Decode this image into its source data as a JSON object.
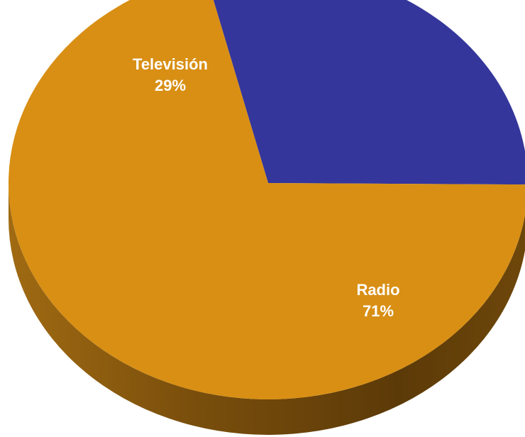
{
  "chart_data": {
    "type": "pie",
    "style": "3d",
    "title": "",
    "slices": [
      {
        "label": "Televisión",
        "value": 29,
        "value_label": "29%",
        "color": "#35369b"
      },
      {
        "label": "Radio",
        "value": 71,
        "value_label": "71%",
        "color": "#d88f14"
      }
    ],
    "side_color": "#8a5a0e"
  }
}
